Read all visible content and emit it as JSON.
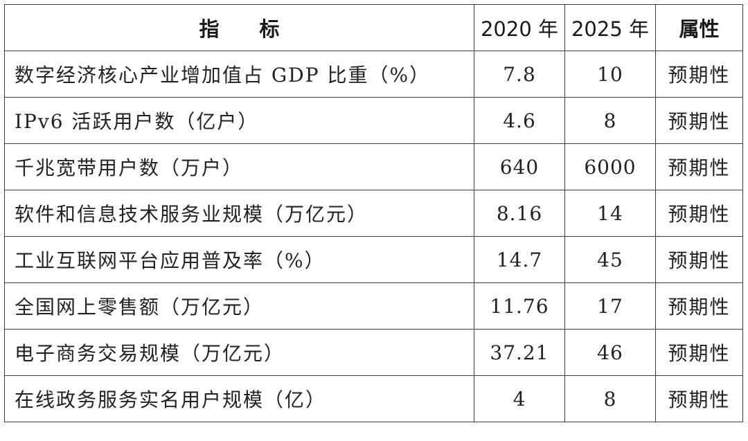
{
  "table": {
    "headers": {
      "indicator": "指标",
      "year_2020": "2020 年",
      "year_2025": "2025 年",
      "attribute": "属性"
    },
    "rows": [
      {
        "indicator": "数字经济核心产业增加值占 GDP 比重（%）",
        "v2020": "7.8",
        "v2025": "10",
        "attribute": "预期性"
      },
      {
        "indicator": "IPv6 活跃用户数（亿户）",
        "v2020": "4.6",
        "v2025": "8",
        "attribute": "预期性"
      },
      {
        "indicator": "千兆宽带用户数（万户）",
        "v2020": "640",
        "v2025": "6000",
        "attribute": "预期性"
      },
      {
        "indicator": "软件和信息技术服务业规模（万亿元）",
        "v2020": "8.16",
        "v2025": "14",
        "attribute": "预期性"
      },
      {
        "indicator": "工业互联网平台应用普及率（%）",
        "v2020": "14.7",
        "v2025": "45",
        "attribute": "预期性"
      },
      {
        "indicator": "全国网上零售额（万亿元）",
        "v2020": "11.76",
        "v2025": "17",
        "attribute": "预期性"
      },
      {
        "indicator": "电子商务交易规模（万亿元）",
        "v2020": "37.21",
        "v2025": "46",
        "attribute": "预期性"
      },
      {
        "indicator": "在线政务服务实名用户规模（亿）",
        "v2020": "4",
        "v2025": "8",
        "attribute": "预期性"
      }
    ]
  }
}
